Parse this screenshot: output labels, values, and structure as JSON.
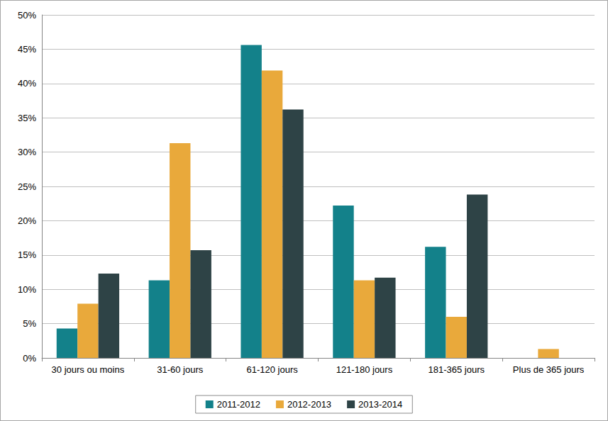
{
  "chart_data": {
    "type": "bar",
    "categories": [
      "30 jours ou moins",
      "31-60 jours",
      "61-120 jours",
      "121-180 jours",
      "181-365 jours",
      "Plus de 365 jours"
    ],
    "series": [
      {
        "name": "2011-2012",
        "color": "#13818a",
        "values": [
          4.3,
          11.3,
          45.6,
          22.2,
          16.2,
          0
        ]
      },
      {
        "name": "2012-2013",
        "color": "#e9a93b",
        "values": [
          7.9,
          31.3,
          41.9,
          11.3,
          6.0,
          1.3
        ]
      },
      {
        "name": "2013-2014",
        "color": "#2e4346",
        "values": [
          12.3,
          15.7,
          36.2,
          11.7,
          23.8,
          0
        ]
      }
    ],
    "ylim": [
      0,
      50
    ],
    "yticks": [
      {
        "value": 0,
        "label": "0%"
      },
      {
        "value": 5,
        "label": "5%"
      },
      {
        "value": 10,
        "label": "10%"
      },
      {
        "value": 15,
        "label": "15%"
      },
      {
        "value": 20,
        "label": "20%"
      },
      {
        "value": 25,
        "label": "25%"
      },
      {
        "value": 30,
        "label": "30%"
      },
      {
        "value": 35,
        "label": "35%"
      },
      {
        "value": 40,
        "label": "40%"
      },
      {
        "value": 45,
        "label": "45%"
      },
      {
        "value": 50,
        "label": "50%"
      }
    ],
    "grid": true,
    "legend": "bottom"
  }
}
